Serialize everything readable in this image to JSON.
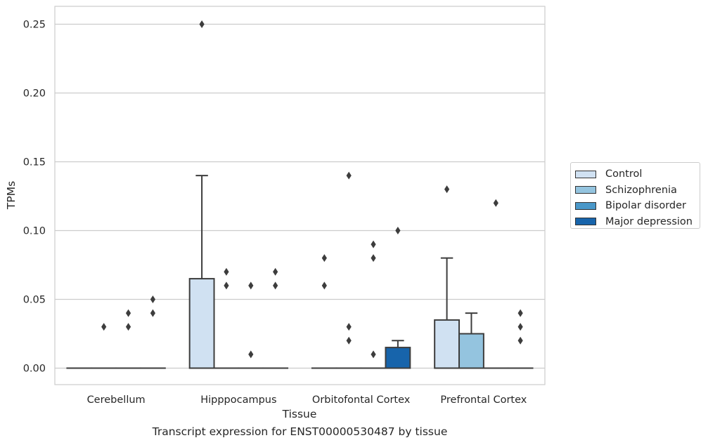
{
  "caption": "Transcript expression for ENST00000530487 by tissue",
  "legend": {
    "items": [
      {
        "label": "Control",
        "color": "#d0e1f2"
      },
      {
        "label": "Schizophrenia",
        "color": "#94c4df"
      },
      {
        "label": "Bipolar disorder",
        "color": "#4a98c9"
      },
      {
        "label": "Major depression",
        "color": "#1764ab"
      }
    ]
  },
  "chart_data": {
    "type": "box",
    "title": "",
    "xlabel": "Tissue",
    "ylabel": "TPMs",
    "ylim": [
      -0.012,
      0.263
    ],
    "yticks": [
      0.0,
      0.05,
      0.1,
      0.15,
      0.2,
      0.25
    ],
    "ytick_labels": [
      "0.00",
      "0.05",
      "0.10",
      "0.15",
      "0.20",
      "0.25"
    ],
    "grid": "horizontal",
    "legend_position": "right",
    "categories": [
      "Cerebellum",
      "Hipppocampus",
      "Orbitofontal Cortex",
      "Prefrontal Cortex"
    ],
    "series_names": [
      "Control",
      "Schizophrenia",
      "Bipolar disorder",
      "Major depression"
    ],
    "boxes": [
      {
        "category": 0,
        "series": 0,
        "q1": 0,
        "median": 0,
        "q3": 0,
        "whisker_low": 0,
        "whisker_high": 0,
        "outliers": []
      },
      {
        "category": 0,
        "series": 1,
        "q1": 0,
        "median": 0,
        "q3": 0,
        "whisker_low": 0,
        "whisker_high": 0,
        "outliers": [
          0.03
        ]
      },
      {
        "category": 0,
        "series": 2,
        "q1": 0,
        "median": 0,
        "q3": 0,
        "whisker_low": 0,
        "whisker_high": 0,
        "outliers": [
          0.03,
          0.04
        ]
      },
      {
        "category": 0,
        "series": 3,
        "q1": 0,
        "median": 0,
        "q3": 0,
        "whisker_low": 0,
        "whisker_high": 0,
        "outliers": [
          0.04,
          0.05
        ]
      },
      {
        "category": 1,
        "series": 0,
        "q1": 0,
        "median": 0,
        "q3": 0.065,
        "whisker_low": 0,
        "whisker_high": 0.14,
        "outliers": [
          0.25
        ]
      },
      {
        "category": 1,
        "series": 1,
        "q1": 0,
        "median": 0,
        "q3": 0,
        "whisker_low": 0,
        "whisker_high": 0,
        "outliers": [
          0.06,
          0.07
        ]
      },
      {
        "category": 1,
        "series": 2,
        "q1": 0,
        "median": 0,
        "q3": 0,
        "whisker_low": 0,
        "whisker_high": 0,
        "outliers": [
          0.01,
          0.06
        ]
      },
      {
        "category": 1,
        "series": 3,
        "q1": 0,
        "median": 0,
        "q3": 0,
        "whisker_low": 0,
        "whisker_high": 0,
        "outliers": [
          0.06,
          0.07
        ]
      },
      {
        "category": 2,
        "series": 0,
        "q1": 0,
        "median": 0,
        "q3": 0,
        "whisker_low": 0,
        "whisker_high": 0,
        "outliers": [
          0.06,
          0.08
        ]
      },
      {
        "category": 2,
        "series": 1,
        "q1": 0,
        "median": 0,
        "q3": 0,
        "whisker_low": 0,
        "whisker_high": 0,
        "outliers": [
          0.02,
          0.03,
          0.14
        ]
      },
      {
        "category": 2,
        "series": 2,
        "q1": 0,
        "median": 0,
        "q3": 0,
        "whisker_low": 0,
        "whisker_high": 0,
        "outliers": [
          0.01,
          0.08,
          0.09
        ]
      },
      {
        "category": 2,
        "series": 3,
        "q1": 0,
        "median": 0,
        "q3": 0.015,
        "whisker_low": 0,
        "whisker_high": 0.02,
        "outliers": [
          0.1
        ]
      },
      {
        "category": 3,
        "series": 0,
        "q1": 0,
        "median": 0,
        "q3": 0.035,
        "whisker_low": 0,
        "whisker_high": 0.08,
        "outliers": [
          0.13
        ]
      },
      {
        "category": 3,
        "series": 1,
        "q1": 0,
        "median": 0,
        "q3": 0.025,
        "whisker_low": 0,
        "whisker_high": 0.04,
        "outliers": []
      },
      {
        "category": 3,
        "series": 2,
        "q1": 0,
        "median": 0,
        "q3": 0,
        "whisker_low": 0,
        "whisker_high": 0,
        "outliers": [
          0.12
        ]
      },
      {
        "category": 3,
        "series": 3,
        "q1": 0,
        "median": 0,
        "q3": 0,
        "whisker_low": 0,
        "whisker_high": 0,
        "outliers": [
          0.02,
          0.03,
          0.04
        ]
      }
    ]
  }
}
